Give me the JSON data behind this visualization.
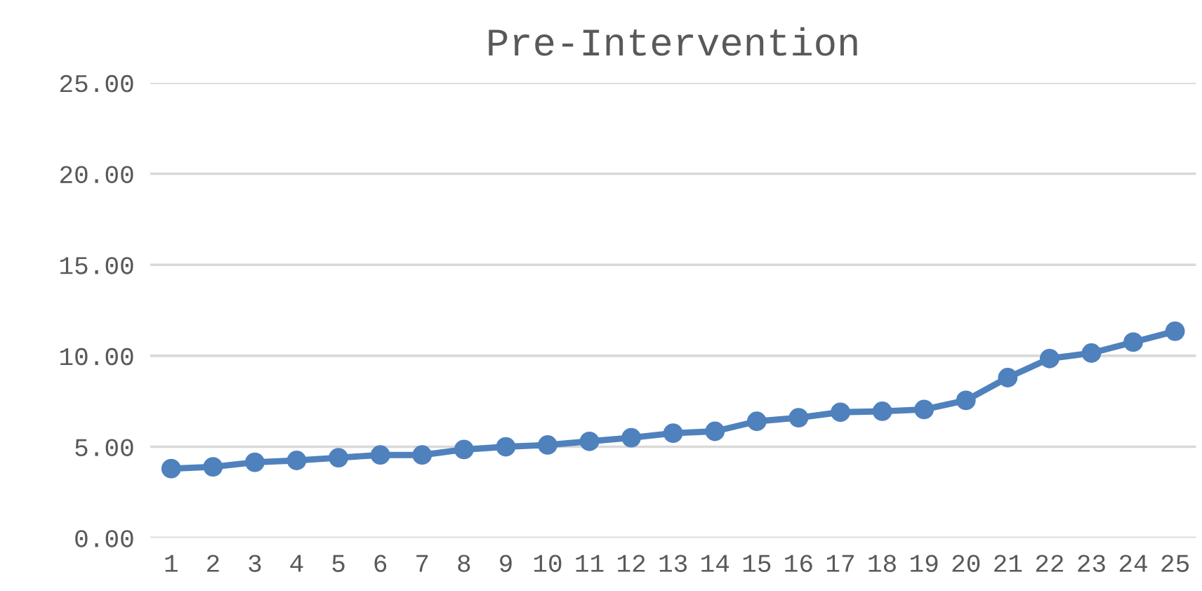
{
  "chart_data": {
    "type": "line",
    "title": "Pre-Intervention",
    "categories": [
      "1",
      "2",
      "3",
      "4",
      "5",
      "6",
      "7",
      "8",
      "9",
      "10",
      "11",
      "12",
      "13",
      "14",
      "15",
      "16",
      "17",
      "18",
      "19",
      "20",
      "21",
      "22",
      "23",
      "24",
      "25"
    ],
    "series": [
      {
        "color": "#4f81bd",
        "values": [
          3.8,
          3.9,
          4.15,
          4.25,
          4.4,
          4.55,
          4.55,
          4.85,
          5.0,
          5.1,
          5.3,
          5.5,
          5.75,
          5.85,
          6.4,
          6.6,
          6.9,
          6.95,
          7.05,
          7.55,
          8.8,
          9.85,
          10.15,
          10.75,
          11.35
        ]
      }
    ],
    "ylim": [
      0,
      25
    ],
    "yticks": [
      {
        "value": 0,
        "label": "0.00"
      },
      {
        "value": 5,
        "label": "5.00"
      },
      {
        "value": 10,
        "label": "10.00"
      },
      {
        "value": 15,
        "label": "15.00"
      },
      {
        "value": 20,
        "label": "20.00"
      },
      {
        "value": 25,
        "label": "25.00"
      }
    ],
    "grid": "y",
    "marker": "circle",
    "line_style": "solid",
    "legend": false
  }
}
